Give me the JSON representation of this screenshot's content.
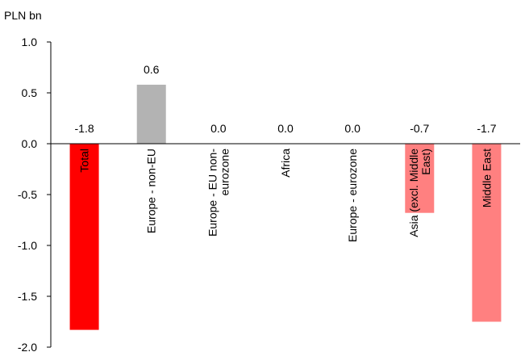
{
  "chart_data": {
    "type": "bar",
    "unit_label": "PLN bn",
    "categories": [
      {
        "label": "Total",
        "lines": [
          "Total"
        ]
      },
      {
        "label": "Europe - non-EU",
        "lines": [
          "Europe - non-EU"
        ]
      },
      {
        "label": "Europe - EU non-eurozone",
        "lines": [
          "Europe - EU non-",
          "eurozone"
        ]
      },
      {
        "label": "Africa",
        "lines": [
          "Africa"
        ]
      },
      {
        "label": "Europe - eurozone",
        "lines": [
          "Europe - eurozone"
        ]
      },
      {
        "label": "Asia (excl. Middle East)",
        "lines": [
          "Asia (excl. Middle",
          "East)"
        ]
      },
      {
        "label": "Middle East",
        "lines": [
          "Middle East"
        ]
      }
    ],
    "values": [
      -1.83,
      0.58,
      0.0,
      0.0,
      0.0,
      -0.68,
      -1.75
    ],
    "data_labels": [
      "-1.8",
      "0.6",
      "0.0",
      "0.0",
      "0.0",
      "-0.7",
      "-1.7"
    ],
    "bar_colors": [
      "#ff0000",
      "#b3b3b3",
      "#b3b3b3",
      "#b3b3b3",
      "#b3b3b3",
      "#ff8080",
      "#ff8080"
    ],
    "ylim": [
      -2.0,
      1.0
    ],
    "yticks": [
      1.0,
      0.5,
      0.0,
      -0.5,
      -1.0,
      -1.5,
      -2.0
    ],
    "ytick_labels": [
      "1.0",
      "0.5",
      "0.0",
      "-0.5",
      "-1.0",
      "-1.5",
      "-2.0"
    ],
    "grid": false,
    "legend": "none"
  }
}
